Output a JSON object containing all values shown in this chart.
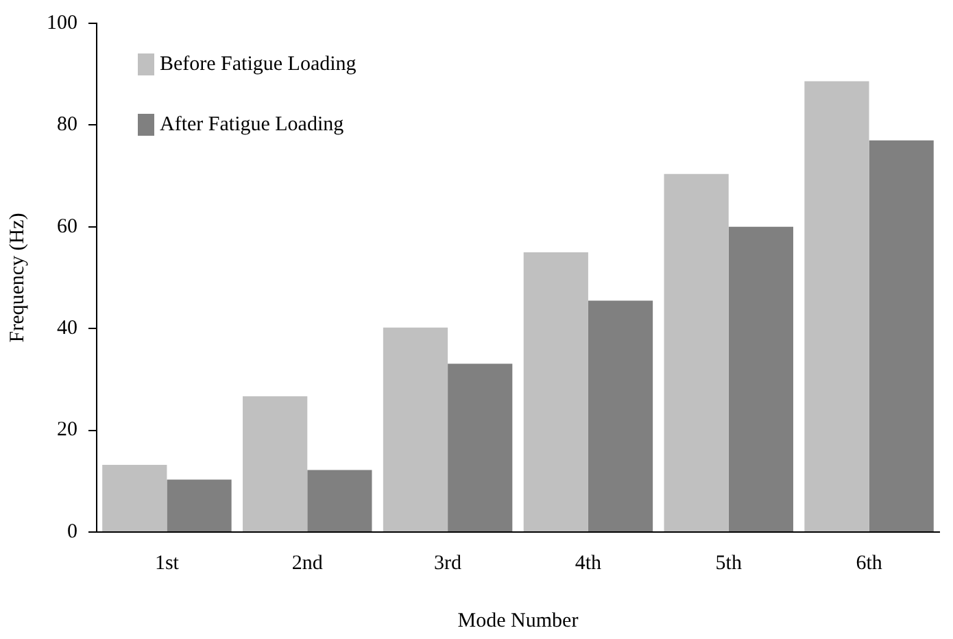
{
  "chart_data": {
    "type": "bar",
    "xlabel": "Mode Number",
    "ylabel": "Frequency (Hz)",
    "categories": [
      "1st",
      "2nd",
      "3rd",
      "4th",
      "5th",
      "6th"
    ],
    "series": [
      {
        "name": "Before Fatigue Loading",
        "color": "#c0c0c0",
        "values": [
          13.2,
          26.7,
          40.2,
          55.0,
          70.4,
          88.6
        ]
      },
      {
        "name": "After Fatigue Loading",
        "color": "#808080",
        "values": [
          10.3,
          12.2,
          33.1,
          45.5,
          60.0,
          77.0
        ]
      }
    ],
    "ylim": [
      0,
      100
    ],
    "yticks": [
      0,
      20,
      40,
      60,
      80,
      100
    ],
    "grid": false,
    "legend": "top left"
  }
}
